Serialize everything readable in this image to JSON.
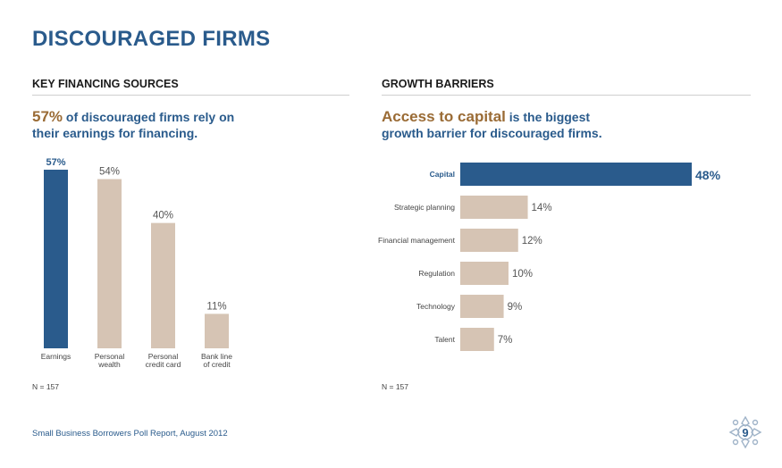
{
  "page": {
    "title": "DISCOURAGED FIRMS",
    "footer": "Small Business Borrowers Poll Report, August 2012",
    "page_number": "9"
  },
  "left": {
    "heading": "KEY FINANCING SOURCES",
    "headline_highlight": "57%",
    "headline_rest_1": " of discouraged firms rely on",
    "headline_rest_2": "their earnings for financing.",
    "note": "N = 157"
  },
  "right": {
    "heading": "GROWTH BARRIERS",
    "headline_highlight": "Access to capital",
    "headline_rest_1": " is the biggest",
    "headline_rest_2": "growth barrier for discouraged firms.",
    "note": "N = 157"
  },
  "colors": {
    "primary": "#2a5b8c",
    "muted": "#d6c4b4",
    "accent": "#9a6b35"
  },
  "chart_data": [
    {
      "type": "bar",
      "categories": [
        [
          "Earnings"
        ],
        [
          "Personal",
          "wealth"
        ],
        [
          "Personal",
          "credit card"
        ],
        [
          "Bank line",
          "of credit"
        ]
      ],
      "values": [
        57,
        54,
        40,
        11
      ],
      "value_labels": [
        "57%",
        "54%",
        "40%",
        "11%"
      ],
      "highlight_index": 0,
      "ylim": [
        0,
        57
      ],
      "orientation": "vertical"
    },
    {
      "type": "bar",
      "categories": [
        "Capital",
        "Strategic planning",
        "Financial management",
        "Regulation",
        "Technology",
        "Talent"
      ],
      "values": [
        48,
        14,
        12,
        10,
        9,
        7
      ],
      "value_labels": [
        "48%",
        "14%",
        "12%",
        "10%",
        "9%",
        "7%"
      ],
      "highlight_index": 0,
      "xlim": [
        0,
        48
      ],
      "orientation": "horizontal"
    }
  ]
}
